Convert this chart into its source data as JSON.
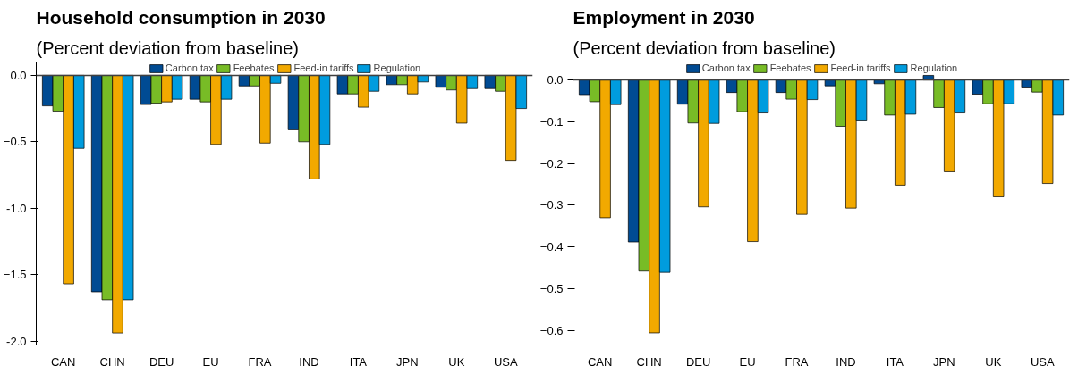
{
  "chart_data": [
    {
      "type": "bar",
      "title": "Household consumption in 2030",
      "subtitle": "(Percent deviation from baseline)",
      "categories": [
        "CAN",
        "CHN",
        "DEU",
        "EU",
        "FRA",
        "IND",
        "ITA",
        "JPN",
        "UK",
        "USA"
      ],
      "series": [
        {
          "name": "Carbon tax",
          "color": "#004b93",
          "values": [
            -0.23,
            -1.63,
            -0.22,
            -0.18,
            -0.08,
            -0.41,
            -0.14,
            -0.07,
            -0.09,
            -0.1
          ]
        },
        {
          "name": "Feebates",
          "color": "#78bc26",
          "values": [
            -0.27,
            -1.69,
            -0.21,
            -0.2,
            -0.08,
            -0.5,
            -0.14,
            -0.07,
            -0.11,
            -0.12
          ]
        },
        {
          "name": "Feed-in tariffs",
          "color": "#f2a900",
          "values": [
            -1.57,
            -1.94,
            -0.2,
            -0.52,
            -0.51,
            -0.78,
            -0.24,
            -0.14,
            -0.36,
            -0.64
          ]
        },
        {
          "name": "Regulation",
          "color": "#009cde",
          "values": [
            -0.55,
            -1.69,
            -0.18,
            -0.18,
            -0.06,
            -0.52,
            -0.12,
            -0.05,
            -0.1,
            -0.25
          ]
        }
      ],
      "ylim": [
        -2.03,
        0.1
      ],
      "yticks": [
        {
          "value": 0,
          "label": "0.0"
        },
        -0.5,
        {
          "value": -1,
          "label": "-1.0"
        },
        -1.5,
        {
          "value": -2,
          "label": "-2.0"
        }
      ],
      "ref_lines": [
        {
          "axis": "y",
          "value": 0,
          "color": "#404040"
        }
      ],
      "legend": "top",
      "grid": false
    },
    {
      "type": "bar",
      "title": "Employment in 2030",
      "subtitle": "(Percent deviation from baseline)",
      "categories": [
        "CAN",
        "CHN",
        "DEU",
        "EU",
        "FRA",
        "IND",
        "ITA",
        "JPN",
        "UK",
        "USA"
      ],
      "series": [
        {
          "name": "Carbon tax",
          "color": "#004b93",
          "values": [
            -0.035,
            -0.388,
            -0.058,
            -0.03,
            -0.03,
            -0.014,
            -0.009,
            0.011,
            -0.034,
            -0.019
          ]
        },
        {
          "name": "Feebates",
          "color": "#78bc26",
          "values": [
            -0.052,
            -0.458,
            -0.103,
            -0.076,
            -0.046,
            -0.111,
            -0.084,
            -0.066,
            -0.057,
            -0.029
          ]
        },
        {
          "name": "Feed-in tariffs",
          "color": "#f2a900",
          "values": [
            -0.33,
            -0.606,
            -0.304,
            -0.387,
            -0.322,
            -0.307,
            -0.252,
            -0.22,
            -0.28,
            -0.248
          ]
        },
        {
          "name": "Regulation",
          "color": "#009cde",
          "values": [
            -0.059,
            -0.461,
            -0.104,
            -0.079,
            -0.047,
            -0.096,
            -0.082,
            -0.079,
            -0.057,
            -0.084
          ]
        }
      ],
      "ylim": [
        -0.635,
        0.043
      ],
      "yticks": [
        {
          "value": 0,
          "label": "0.0"
        },
        -0.1,
        -0.2,
        -0.3,
        -0.4,
        -0.5,
        -0.6
      ],
      "ref_lines": [
        {
          "axis": "y",
          "value": 0,
          "color": "#404040"
        }
      ],
      "legend": "top",
      "grid": false
    }
  ]
}
